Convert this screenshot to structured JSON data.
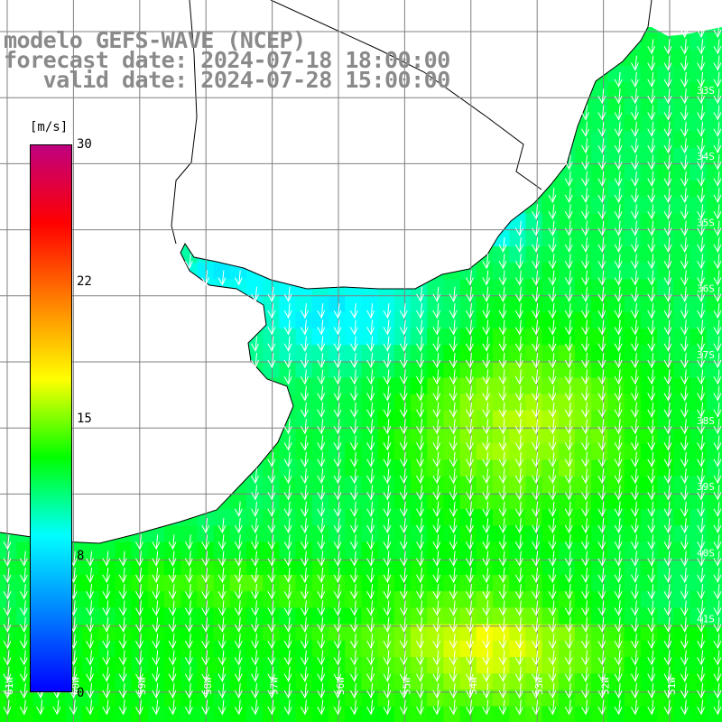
{
  "title": {
    "line1": "modelo GEFS-WAVE (NCEP)",
    "line2": "forecast date: 2024-07-18 18:00:00",
    "line3": "   valid date: 2024-07-28 15:00:00"
  },
  "colorbar": {
    "unit": "[m/s]",
    "ticks": [
      "30",
      "22",
      "15",
      "8",
      "0"
    ],
    "tick_values": [
      30,
      22,
      15,
      8,
      0
    ],
    "range": [
      0,
      30
    ],
    "colors": [
      "#0000ff",
      "#0080ff",
      "#00ffff",
      "#00ff00",
      "#ffff00",
      "#ff8000",
      "#ff0000",
      "#c00080"
    ]
  },
  "map": {
    "lon_labels": [
      "61W",
      "60W",
      "59W",
      "58W",
      "57W",
      "56W",
      "55W",
      "54W",
      "53W",
      "52W",
      "51W"
    ],
    "lat_labels": [
      "33S",
      "34S",
      "35S",
      "36S",
      "37S",
      "38S",
      "39S",
      "40S",
      "41S"
    ],
    "land_color": "#ffffff",
    "coast_color": "#000000",
    "grid_color": "#808080",
    "arrow_color": "#ffffff",
    "wind_direction": "from north"
  }
}
